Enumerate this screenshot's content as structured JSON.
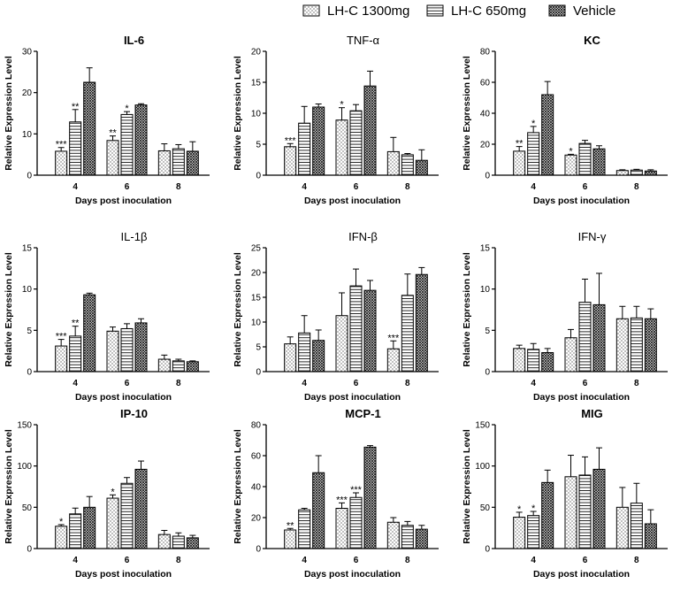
{
  "legend": {
    "items": [
      {
        "label": "LH-C 1300mg",
        "pattern": "dots"
      },
      {
        "label": "LH-C  650mg",
        "pattern": "hlines"
      },
      {
        "label": "Vehicle",
        "pattern": "cross"
      }
    ]
  },
  "chart_data": [
    {
      "type": "bar",
      "title": "IL-6",
      "title_bold": true,
      "xlabel": "Days post inoculation",
      "ylabel": "Relative Expression Level",
      "categories": [
        "4",
        "6",
        "8"
      ],
      "ylim": [
        0,
        30
      ],
      "yticks": [
        0,
        10,
        20,
        30
      ],
      "series": [
        {
          "name": "LH-C 1300mg",
          "values": [
            5.8,
            8.4,
            5.9
          ],
          "errors": [
            0.9,
            1.1,
            1.7
          ],
          "sig": [
            "***",
            "**",
            ""
          ]
        },
        {
          "name": "LH-C  650mg",
          "values": [
            12.9,
            14.7,
            6.4
          ],
          "errors": [
            3.0,
            0.7,
            1.0
          ],
          "sig": [
            "**",
            "*",
            ""
          ]
        },
        {
          "name": "Vehicle",
          "values": [
            22.5,
            17.0,
            5.8
          ],
          "errors": [
            3.5,
            0.3,
            2.3
          ],
          "sig": [
            "",
            "",
            ""
          ]
        }
      ]
    },
    {
      "type": "bar",
      "title": "TNF-α",
      "title_bold": false,
      "xlabel": "Days post inoculation",
      "ylabel": "Relative Expression Level",
      "categories": [
        "4",
        "6",
        "8"
      ],
      "ylim": [
        0,
        20
      ],
      "yticks": [
        0,
        5,
        10,
        15,
        20
      ],
      "series": [
        {
          "name": "LH-C 1300mg",
          "values": [
            4.6,
            8.9,
            3.8
          ],
          "errors": [
            0.5,
            2.0,
            2.3
          ],
          "sig": [
            "***",
            "*",
            ""
          ]
        },
        {
          "name": "LH-C  650mg",
          "values": [
            8.4,
            10.4,
            3.3
          ],
          "errors": [
            2.7,
            1.0,
            0.2
          ],
          "sig": [
            "",
            "",
            ""
          ]
        },
        {
          "name": "Vehicle",
          "values": [
            11.0,
            14.4,
            2.4
          ],
          "errors": [
            0.5,
            2.4,
            1.7
          ],
          "sig": [
            "",
            "",
            ""
          ]
        }
      ]
    },
    {
      "type": "bar",
      "title": "KC",
      "title_bold": true,
      "xlabel": "Days post inoculation",
      "ylabel": "Relative Expression Level",
      "categories": [
        "4",
        "6",
        "8"
      ],
      "ylim": [
        0,
        80
      ],
      "yticks": [
        0,
        20,
        40,
        60,
        80
      ],
      "series": [
        {
          "name": "LH-C 1300mg",
          "values": [
            15.5,
            13.0,
            3.0
          ],
          "errors": [
            3.0,
            0.5,
            0.5
          ],
          "sig": [
            "**",
            "*",
            ""
          ]
        },
        {
          "name": "LH-C  650mg",
          "values": [
            27.5,
            20.5,
            3.3
          ],
          "errors": [
            4.0,
            2.0,
            0.5
          ],
          "sig": [
            "*",
            "",
            ""
          ]
        },
        {
          "name": "Vehicle",
          "values": [
            52.0,
            17.0,
            2.7
          ],
          "errors": [
            8.5,
            2.0,
            0.8
          ],
          "sig": [
            "",
            "",
            ""
          ]
        }
      ]
    },
    {
      "type": "bar",
      "title": "IL-1β",
      "title_bold": false,
      "xlabel": "Days post inoculation",
      "ylabel": "Relative Expression Level",
      "categories": [
        "4",
        "6",
        "8"
      ],
      "ylim": [
        0,
        15
      ],
      "yticks": [
        0,
        5,
        10,
        15
      ],
      "series": [
        {
          "name": "LH-C 1300mg",
          "values": [
            3.1,
            4.9,
            1.5
          ],
          "errors": [
            0.8,
            0.5,
            0.5
          ],
          "sig": [
            "***",
            "",
            ""
          ]
        },
        {
          "name": "LH-C  650mg",
          "values": [
            4.3,
            5.2,
            1.3
          ],
          "errors": [
            1.2,
            0.6,
            0.2
          ],
          "sig": [
            "**",
            "",
            ""
          ]
        },
        {
          "name": "Vehicle",
          "values": [
            9.3,
            5.9,
            1.2
          ],
          "errors": [
            0.2,
            0.5,
            0.1
          ],
          "sig": [
            "",
            "",
            ""
          ]
        }
      ]
    },
    {
      "type": "bar",
      "title": "IFN-β",
      "title_bold": false,
      "xlabel": "Days post inoculation",
      "ylabel": "Relative Expression Level",
      "categories": [
        "4",
        "6",
        "8"
      ],
      "ylim": [
        0,
        25
      ],
      "yticks": [
        0,
        5,
        10,
        15,
        20,
        25
      ],
      "series": [
        {
          "name": "LH-C 1300mg",
          "values": [
            5.6,
            11.3,
            4.6
          ],
          "errors": [
            1.4,
            4.6,
            1.6
          ],
          "sig": [
            "",
            "",
            "***"
          ]
        },
        {
          "name": "LH-C  650mg",
          "values": [
            7.8,
            17.3,
            15.4
          ],
          "errors": [
            3.5,
            3.4,
            4.3
          ],
          "sig": [
            "",
            "",
            ""
          ]
        },
        {
          "name": "Vehicle",
          "values": [
            6.3,
            16.4,
            19.6
          ],
          "errors": [
            2.1,
            2.0,
            1.4
          ],
          "sig": [
            "",
            "",
            ""
          ]
        }
      ]
    },
    {
      "type": "bar",
      "title": "IFN-γ",
      "title_bold": false,
      "xlabel": "Days post inoculation",
      "ylabel": "Relative Expression Level",
      "categories": [
        "4",
        "6",
        "8"
      ],
      "ylim": [
        0,
        15
      ],
      "yticks": [
        0,
        5,
        10,
        15
      ],
      "series": [
        {
          "name": "LH-C 1300mg",
          "values": [
            2.8,
            4.1,
            6.4
          ],
          "errors": [
            0.4,
            1.0,
            1.5
          ],
          "sig": [
            "",
            "",
            ""
          ]
        },
        {
          "name": "LH-C  650mg",
          "values": [
            2.7,
            8.4,
            6.5
          ],
          "errors": [
            0.7,
            2.8,
            1.4
          ],
          "sig": [
            "",
            "",
            ""
          ]
        },
        {
          "name": "Vehicle",
          "values": [
            2.3,
            8.1,
            6.4
          ],
          "errors": [
            0.5,
            3.8,
            1.2
          ],
          "sig": [
            "",
            "",
            ""
          ]
        }
      ]
    },
    {
      "type": "bar",
      "title": "IP-10",
      "title_bold": true,
      "xlabel": "Days post inoculation",
      "ylabel": "Relative Expression Level",
      "categories": [
        "4",
        "6",
        "8"
      ],
      "ylim": [
        0,
        150
      ],
      "yticks": [
        0,
        50,
        100,
        150
      ],
      "series": [
        {
          "name": "LH-C 1300mg",
          "values": [
            27,
            61,
            17
          ],
          "errors": [
            2,
            4,
            5
          ],
          "sig": [
            "*",
            "*",
            ""
          ]
        },
        {
          "name": "LH-C  650mg",
          "values": [
            42,
            79,
            15
          ],
          "errors": [
            7,
            7,
            4
          ],
          "sig": [
            "",
            "",
            ""
          ]
        },
        {
          "name": "Vehicle",
          "values": [
            50,
            96,
            13
          ],
          "errors": [
            13,
            10,
            3
          ],
          "sig": [
            "",
            "",
            ""
          ]
        }
      ]
    },
    {
      "type": "bar",
      "title": "MCP-1",
      "title_bold": true,
      "xlabel": "Days post inoculation",
      "ylabel": "Relative Expression Level",
      "categories": [
        "4",
        "6",
        "8"
      ],
      "ylim": [
        0,
        80
      ],
      "yticks": [
        0,
        20,
        40,
        60,
        80
      ],
      "series": [
        {
          "name": "LH-C 1300mg",
          "values": [
            12,
            26,
            17
          ],
          "errors": [
            1,
            3.5,
            3
          ],
          "sig": [
            "**",
            "***",
            ""
          ]
        },
        {
          "name": "LH-C  650mg",
          "values": [
            25,
            33,
            15
          ],
          "errors": [
            1,
            3,
            2.5
          ],
          "sig": [
            "",
            "***",
            ""
          ]
        },
        {
          "name": "Vehicle",
          "values": [
            49,
            65.5,
            12.5
          ],
          "errors": [
            11,
            1,
            2.5
          ],
          "sig": [
            "",
            "",
            ""
          ]
        }
      ]
    },
    {
      "type": "bar",
      "title": "MIG",
      "title_bold": true,
      "xlabel": "Days post inoculation",
      "ylabel": "Relative Expression Level",
      "categories": [
        "4",
        "6",
        "8"
      ],
      "ylim": [
        0,
        150
      ],
      "yticks": [
        0,
        50,
        100,
        150
      ],
      "series": [
        {
          "name": "LH-C 1300mg",
          "values": [
            38,
            87,
            50
          ],
          "errors": [
            6,
            26,
            24
          ],
          "sig": [
            "*",
            "",
            ""
          ]
        },
        {
          "name": "LH-C  650mg",
          "values": [
            40,
            89,
            55
          ],
          "errors": [
            5,
            22,
            24
          ],
          "sig": [
            "*",
            "",
            ""
          ]
        },
        {
          "name": "Vehicle",
          "values": [
            80,
            96,
            30
          ],
          "errors": [
            15,
            26,
            17
          ],
          "sig": [
            "",
            "",
            ""
          ]
        }
      ]
    }
  ]
}
